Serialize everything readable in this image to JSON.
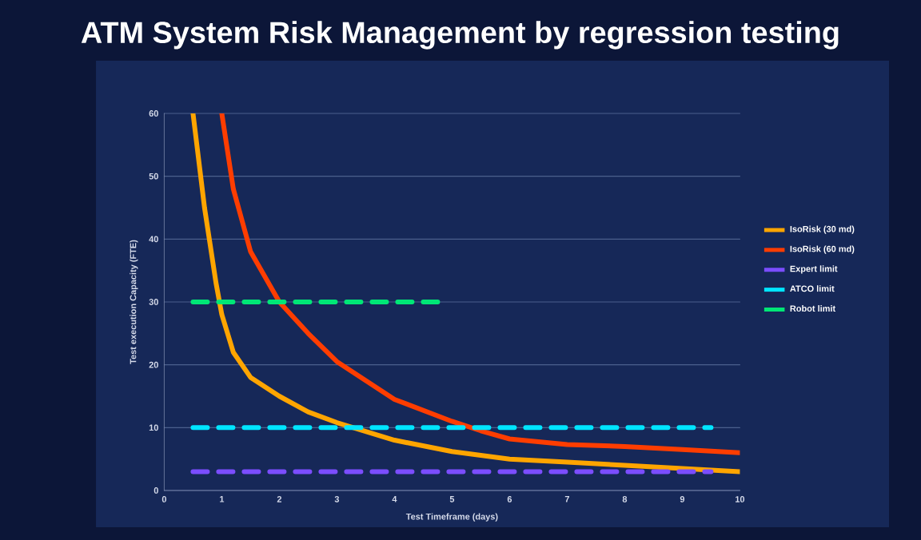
{
  "chart_data": {
    "type": "line",
    "title": "ATM System Risk Management by regression testing",
    "xlabel": "Test Timeframe (days)",
    "ylabel": "Test execution Capacity (FTE)",
    "xlim": [
      0,
      10
    ],
    "ylim": [
      0,
      60
    ],
    "xticks": [
      0,
      1,
      2,
      3,
      4,
      5,
      6,
      7,
      8,
      9,
      10
    ],
    "yticks": [
      0,
      10,
      20,
      30,
      40,
      50,
      60
    ],
    "grid": "y",
    "legend": "right",
    "marker": "none",
    "series": [
      {
        "name": "IsoRisk (30 md)",
        "color": "#ffa500",
        "line_style": "solid",
        "x": [
          0.5,
          0.7,
          0.9,
          1.0,
          1.2,
          1.5,
          2,
          2.5,
          3,
          4,
          5,
          6,
          7,
          8,
          9,
          10
        ],
        "values": [
          60,
          45,
          33,
          28,
          22,
          18,
          15,
          12.5,
          10.8,
          8,
          6.2,
          5,
          4.5,
          4,
          3.5,
          3
        ]
      },
      {
        "name": "IsoRisk (60 md)",
        "color": "#ff3d00",
        "line_style": "solid",
        "x": [
          1,
          1.2,
          1.5,
          2,
          2.5,
          3,
          4,
          5,
          5.5,
          6,
          7,
          8,
          9,
          10
        ],
        "values": [
          60,
          48,
          38,
          30,
          25,
          20.5,
          14.5,
          11,
          9.5,
          8.2,
          7.3,
          7,
          6.5,
          6
        ]
      },
      {
        "name": "Expert limit",
        "color": "#7b4dff",
        "line_style": "dashed",
        "x": [
          0.5,
          9.5
        ],
        "values": [
          3,
          3
        ]
      },
      {
        "name": "ATCO limit",
        "color": "#00e5ff",
        "line_style": "dashed",
        "x": [
          0.5,
          9.5
        ],
        "values": [
          10,
          10
        ]
      },
      {
        "name": "Robot limit",
        "color": "#00e676",
        "line_style": "dashed",
        "x": [
          0.5,
          4.8
        ],
        "values": [
          30,
          30
        ]
      }
    ]
  }
}
